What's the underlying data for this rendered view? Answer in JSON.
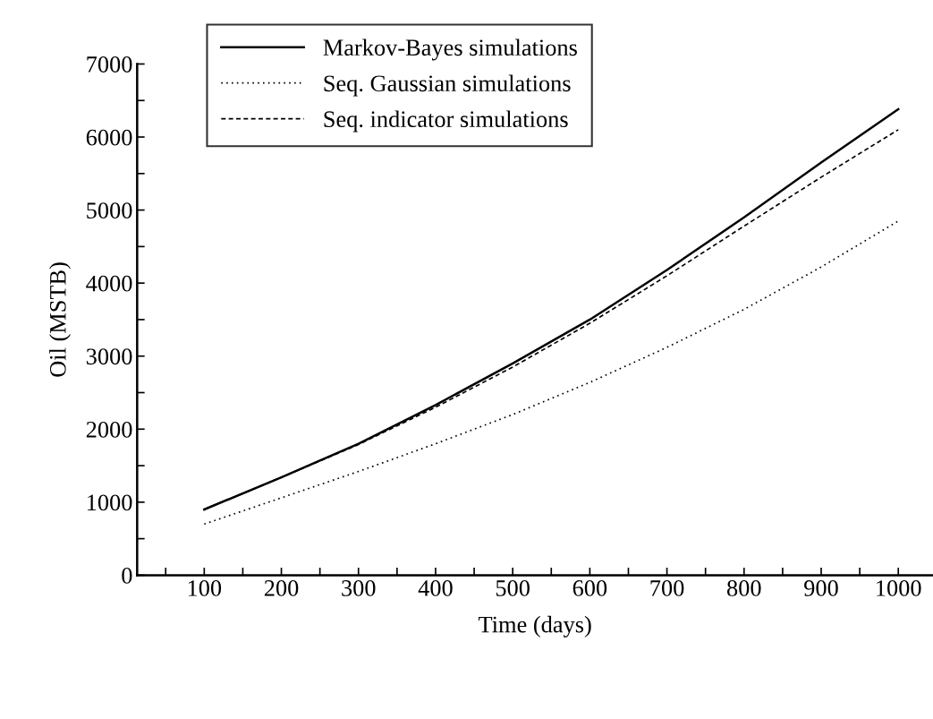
{
  "chart_data": {
    "type": "line",
    "xlabel": "Time (days)",
    "ylabel": "Oil (MSTB)",
    "x": [
      100,
      200,
      300,
      400,
      500,
      600,
      700,
      800,
      900,
      1000
    ],
    "series": [
      {
        "name": "Markov-Bayes simulations",
        "color": "#000000",
        "line_style": "solid",
        "values": [
          900,
          1340,
          1800,
          2330,
          2900,
          3500,
          4180,
          4900,
          5650,
          6380
        ]
      },
      {
        "name": "Seq. Gaussian simulations",
        "color": "#000000",
        "line_style": "dotted",
        "values": [
          700,
          1060,
          1420,
          1800,
          2200,
          2640,
          3120,
          3640,
          4220,
          4850
        ]
      },
      {
        "name": "Seq. indicator simulations",
        "color": "#000000",
        "line_style": "dashed",
        "values": [
          900,
          1340,
          1790,
          2300,
          2850,
          3450,
          4100,
          4780,
          5450,
          6100
        ]
      }
    ],
    "xlim": [
      13,
      1045
    ],
    "ylim": [
      0,
      7000
    ],
    "xticks": [
      {
        "value": 50,
        "label": null
      },
      100,
      {
        "value": 150,
        "label": null
      },
      200,
      {
        "value": 250,
        "label": null
      },
      300,
      {
        "value": 350,
        "label": null
      },
      400,
      {
        "value": 450,
        "label": null
      },
      500,
      {
        "value": 550,
        "label": null
      },
      600,
      {
        "value": 650,
        "label": null
      },
      700,
      {
        "value": 750,
        "label": null
      },
      800,
      {
        "value": 850,
        "label": null
      },
      900,
      {
        "value": 950,
        "label": null
      },
      1000
    ],
    "yticks": [
      0,
      {
        "value": 500,
        "label": null
      },
      1000,
      {
        "value": 1500,
        "label": null
      },
      2000,
      {
        "value": 2500,
        "label": null
      },
      3000,
      {
        "value": 3500,
        "label": null
      },
      4000,
      {
        "value": 4500,
        "label": null
      },
      5000,
      {
        "value": 5500,
        "label": null
      },
      6000,
      {
        "value": 6500,
        "label": null
      },
      7000
    ],
    "grid": false,
    "legend": "top left",
    "marker": "none"
  }
}
